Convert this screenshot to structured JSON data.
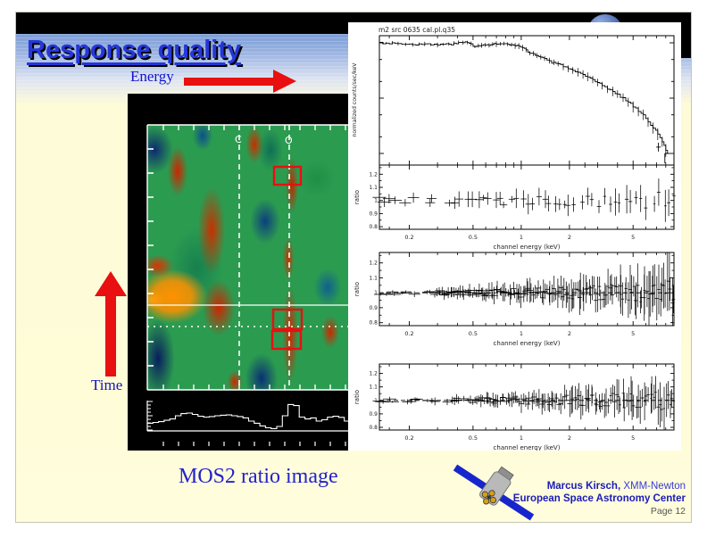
{
  "slide": {
    "title": "Response quality",
    "energy_label": "Energy",
    "time_label": "Time",
    "caption": "MOS2 ratio image",
    "footer": {
      "author": "Marcus Kirsch,",
      "mission": " XMM-Newton",
      "org": "European Space Astronomy Center",
      "page": "Page 12"
    },
    "colors": {
      "arrow_red": "#e81010",
      "title_blue": "#2636d8",
      "label_blue": "#1212cc",
      "caption_blue": "#2222cc",
      "footer_blue": "#1b1bb8",
      "page_grey": "#555555"
    }
  },
  "image_panel": {
    "label_c": "C",
    "label_o": "O"
  },
  "plots": {
    "title": "m2 src 0635 cal.pl.q35",
    "xlabel": "channel energy (keV)",
    "spectrum_ylabel": "normalized counts/sec/keV",
    "ratio_ylabel": "ratio",
    "xtick_labels": [
      "0.2",
      "0.5",
      "1",
      "2",
      "5"
    ],
    "xtick_values": [
      0.2,
      0.5,
      1,
      2,
      5
    ],
    "minor_xticks": [
      0.15,
      0.3,
      0.4,
      0.6,
      0.7,
      0.8,
      0.9,
      1.5,
      2.5,
      3,
      4,
      6,
      7,
      8
    ],
    "ratio_ytick_labels": [
      "0.8",
      "0.9",
      "1",
      "1.1",
      "1.2"
    ],
    "ratio_ytick_values": [
      0.8,
      0.9,
      1.0,
      1.1,
      1.2
    ]
  },
  "chart_data": [
    {
      "id": "spectrum",
      "type": "line",
      "title": "m2 src 0635 cal.pl.q35",
      "xlabel": "channel energy (keV)",
      "ylabel": "normalized counts/sec/keV",
      "xscale": "log",
      "yscale": "log",
      "xlim": [
        0.13,
        9
      ],
      "x": [
        0.13,
        0.15,
        0.17,
        0.2,
        0.23,
        0.26,
        0.3,
        0.34,
        0.38,
        0.42,
        0.46,
        0.5,
        0.54,
        0.58,
        0.63,
        0.68,
        0.74,
        0.8,
        0.87,
        0.94,
        1.02,
        1.1,
        1.19,
        1.29,
        1.4,
        1.55,
        1.7,
        1.9,
        2.1,
        2.35,
        2.6,
        2.9,
        3.2,
        3.6,
        4.0,
        4.5,
        5.0,
        5.6,
        6.2,
        6.9,
        7.6,
        8.2
      ],
      "y": [
        1.0,
        0.99,
        0.97,
        0.95,
        0.94,
        0.93,
        0.93,
        0.94,
        0.96,
        1.0,
        1.04,
        0.9,
        0.86,
        0.9,
        0.93,
        0.95,
        0.96,
        0.94,
        0.91,
        0.87,
        0.8,
        0.7,
        0.62,
        0.57,
        0.52,
        0.44,
        0.41,
        0.37,
        0.31,
        0.27,
        0.235,
        0.2,
        0.17,
        0.14,
        0.115,
        0.092,
        0.072,
        0.054,
        0.038,
        0.026,
        0.016,
        0.01
      ]
    },
    {
      "id": "ratio-top",
      "type": "scatter",
      "xlabel": "channel energy (keV)",
      "ylabel": "ratio",
      "xscale": "log",
      "xlim": [
        0.13,
        9
      ],
      "ylim": [
        0.78,
        1.27
      ],
      "ref_line": null,
      "n_points": 55,
      "seed": 7,
      "scatter_base": 0.025,
      "scatter_growth": 0.055,
      "err_base": 0.035,
      "err_growth": 0.05,
      "sparse_below": 0.25,
      "sparse_keep": 0.5
    },
    {
      "id": "ratio-middle",
      "type": "scatter",
      "xlabel": "channel energy (keV)",
      "ylabel": "ratio",
      "xscale": "log",
      "xlim": [
        0.13,
        9
      ],
      "ylim": [
        0.78,
        1.27
      ],
      "ref_line": 1,
      "n_points": 175,
      "seed": 13,
      "scatter_base": 0.012,
      "scatter_growth": 0.075,
      "err_base": 0.012,
      "err_growth": 0.13,
      "sparse_below": 0.2,
      "sparse_keep": 0.35
    },
    {
      "id": "ratio-bottom",
      "type": "scatter",
      "xlabel": "channel energy (keV)",
      "ylabel": "ratio",
      "xscale": "log",
      "xlim": [
        0.13,
        9
      ],
      "ylim": [
        0.78,
        1.27
      ],
      "ref_line": 1,
      "n_points": 150,
      "seed": 29,
      "scatter_base": 0.012,
      "scatter_growth": 0.065,
      "err_base": 0.012,
      "err_growth": 0.11,
      "sparse_below": 0.3,
      "sparse_keep": 0.3
    },
    {
      "id": "exposure-profile",
      "type": "bar",
      "values": [
        0.22,
        0.25,
        0.28,
        0.33,
        0.38,
        0.5,
        0.58,
        0.6,
        0.55,
        0.48,
        0.45,
        0.47,
        0.5,
        0.52,
        0.53,
        0.5,
        0.47,
        0.42,
        0.3,
        0.22,
        0.12,
        0.05,
        0.02,
        0.1,
        0.5,
        0.92,
        0.88,
        0.45,
        0.38,
        0.42,
        0.3,
        0.35,
        0.45,
        0.48,
        0.44,
        0.3
      ]
    }
  ]
}
